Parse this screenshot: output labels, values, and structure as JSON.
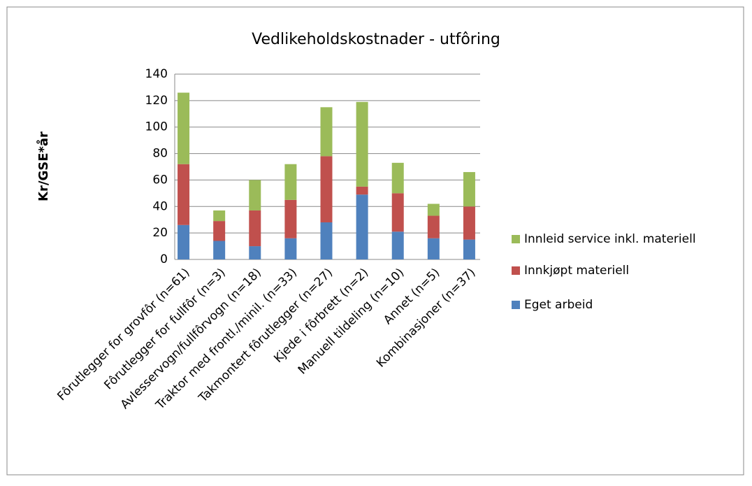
{
  "chart_data": {
    "type": "stacked_bar",
    "title": "Vedlikeholdskostnader - utfôring",
    "y_label": "Kr/GSE*år",
    "categories": [
      "Fôrutlegger for grovfôr (n=61)",
      "Fôrutlegger for fullfôr (n=3)",
      "Avlesservogn/fullfôrvogn (n=18)",
      "Traktor med frontl./minil. (n=33)",
      "Takmontert fôrutlegger (n=27)",
      "Kjede i fôrbrett (n=2)",
      "Manuell tildeling (n=10)",
      "Annet (n=5)",
      "Kombinasjoner (n=37)"
    ],
    "series": [
      {
        "name": "Eget arbeid",
        "color": "#4f81bd",
        "values": [
          26,
          14,
          10,
          16,
          28,
          49,
          21,
          16,
          15
        ]
      },
      {
        "name": "Innkjøpt materiell",
        "color": "#c0504d",
        "values": [
          46,
          15,
          27,
          29,
          50,
          6,
          29,
          17,
          25
        ]
      },
      {
        "name": "Innleid service inkl. materiell",
        "color": "#9bbb59",
        "values": [
          54,
          8,
          23,
          27,
          37,
          64,
          23,
          9,
          26
        ]
      }
    ],
    "ylim": [
      0,
      140
    ],
    "yticks": [
      0,
      20,
      40,
      60,
      80,
      100,
      120,
      140
    ],
    "grid": true,
    "legend": "right"
  }
}
